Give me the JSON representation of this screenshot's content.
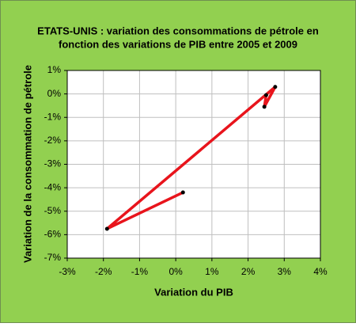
{
  "chart_data": {
    "type": "scatter",
    "title": [
      "ETATS-UNIS : variation des consommations de pétrole en",
      "fonction des variations de PIB entre  2005 et 2009"
    ],
    "x_label": "Variation du PIB",
    "y_label": "Variation de la consommation de pétrole",
    "series": [
      {
        "color": "#e8141c",
        "x": [
          2.5,
          2.45,
          2.75,
          -1.9,
          0.2
        ],
        "values": [
          -0.05,
          -0.55,
          0.3,
          -5.75,
          -4.2
        ]
      }
    ],
    "xlim": [
      -3,
      4
    ],
    "xticks": [
      {
        "value": -3,
        "label": "-3%"
      },
      {
        "value": -2,
        "label": "-2%"
      },
      {
        "value": -1,
        "label": "-1%"
      },
      {
        "value": 0,
        "label": "0%"
      },
      {
        "value": 1,
        "label": "1%"
      },
      {
        "value": 2,
        "label": "2%"
      },
      {
        "value": 3,
        "label": "3%"
      },
      {
        "value": 4,
        "label": "4%"
      }
    ],
    "ylim": [
      -7,
      1
    ],
    "yticks": [
      {
        "value": -7,
        "label": "-7%"
      },
      {
        "value": -6,
        "label": "-6%"
      },
      {
        "value": -5,
        "label": "-5%"
      },
      {
        "value": -4,
        "label": "-4%"
      },
      {
        "value": -3,
        "label": "-3%"
      },
      {
        "value": -2,
        "label": "-2%"
      },
      {
        "value": -1,
        "label": "-1%"
      },
      {
        "value": 0,
        "label": "0%"
      },
      {
        "value": 1,
        "label": "1%"
      }
    ],
    "grid": true
  }
}
